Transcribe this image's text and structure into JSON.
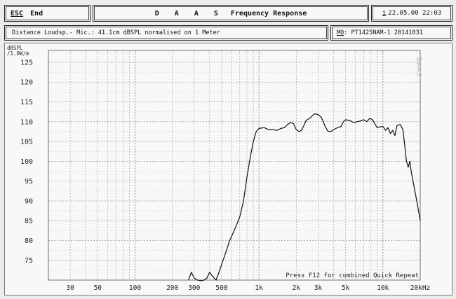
{
  "header": {
    "esc_key": "ESC",
    "esc_label": "End",
    "title_prefix": "D A A S",
    "title": "Frequency Response",
    "date_key": "i",
    "datetime": "22.05.00 22:03"
  },
  "info": {
    "text": "Distance Loudsp.- Mic.: 41.1cm dBSPL normalised on 1 Meter",
    "mo_key": "MO",
    "mo_value": ": PT1425NAM-1 20141031"
  },
  "chart_data": {
    "type": "line",
    "ylabel": "dBSPL\n/1.0W/m",
    "xlabel": "",
    "xunit": "Hz",
    "xscale": "log",
    "xlim": [
      20,
      20000
    ],
    "ylim": [
      70,
      128
    ],
    "y_ticks": [
      75,
      80,
      85,
      90,
      95,
      100,
      105,
      110,
      115,
      120,
      125
    ],
    "x_ticks": [
      {
        "v": 30,
        "label": "30"
      },
      {
        "v": 50,
        "label": "50"
      },
      {
        "v": 100,
        "label": "100"
      },
      {
        "v": 200,
        "label": "200"
      },
      {
        "v": 300,
        "label": "300"
      },
      {
        "v": 500,
        "label": "500"
      },
      {
        "v": 1000,
        "label": "1k"
      },
      {
        "v": 2000,
        "label": "2k"
      },
      {
        "v": 3000,
        "label": "3k"
      },
      {
        "v": 5000,
        "label": "5k"
      },
      {
        "v": 10000,
        "label": "10k"
      },
      {
        "v": 20000,
        "label": "20kHz"
      }
    ],
    "grid": true,
    "watermark": "DAAS",
    "footer_note": "Press F12 for combined Quick Repeat",
    "series": [
      {
        "color": "#111111",
        "points": [
          [
            270,
            70
          ],
          [
            285,
            72
          ],
          [
            300,
            70.5
          ],
          [
            320,
            70
          ],
          [
            340,
            69.8
          ],
          [
            360,
            70
          ],
          [
            380,
            70.5
          ],
          [
            400,
            72
          ],
          [
            420,
            71
          ],
          [
            450,
            70
          ],
          [
            470,
            71.5
          ],
          [
            500,
            74
          ],
          [
            540,
            77
          ],
          [
            580,
            80
          ],
          [
            620,
            82
          ],
          [
            660,
            84
          ],
          [
            700,
            86
          ],
          [
            750,
            90
          ],
          [
            800,
            96
          ],
          [
            850,
            101
          ],
          [
            900,
            105
          ],
          [
            950,
            107.5
          ],
          [
            1000,
            108.3
          ],
          [
            1100,
            108.5
          ],
          [
            1200,
            108
          ],
          [
            1300,
            108
          ],
          [
            1400,
            107.8
          ],
          [
            1500,
            108.3
          ],
          [
            1600,
            108.5
          ],
          [
            1700,
            109.3
          ],
          [
            1800,
            109.8
          ],
          [
            1900,
            109.5
          ],
          [
            2000,
            108
          ],
          [
            2100,
            107.5
          ],
          [
            2200,
            107.8
          ],
          [
            2300,
            109
          ],
          [
            2400,
            110.3
          ],
          [
            2600,
            111
          ],
          [
            2800,
            112
          ],
          [
            3000,
            111.8
          ],
          [
            3200,
            111
          ],
          [
            3400,
            109
          ],
          [
            3600,
            107.6
          ],
          [
            3800,
            107.5
          ],
          [
            4000,
            108
          ],
          [
            4300,
            108.5
          ],
          [
            4600,
            108.8
          ],
          [
            4800,
            110
          ],
          [
            5000,
            110.5
          ],
          [
            5400,
            110.3
          ],
          [
            5800,
            109.8
          ],
          [
            6200,
            110
          ],
          [
            6600,
            110.2
          ],
          [
            7000,
            110.5
          ],
          [
            7400,
            110
          ],
          [
            7800,
            110.8
          ],
          [
            8200,
            110.6
          ],
          [
            8600,
            109.5
          ],
          [
            9000,
            108.5
          ],
          [
            9500,
            108.7
          ],
          [
            10000,
            108.8
          ],
          [
            10500,
            107.8
          ],
          [
            11000,
            108.5
          ],
          [
            11500,
            107
          ],
          [
            12000,
            107.8
          ],
          [
            12500,
            106.5
          ],
          [
            13000,
            109
          ],
          [
            13800,
            109.3
          ],
          [
            14500,
            108
          ],
          [
            15000,
            104
          ],
          [
            15500,
            100
          ],
          [
            16000,
            98.5
          ],
          [
            16500,
            100
          ],
          [
            17000,
            97
          ],
          [
            18000,
            93
          ],
          [
            19000,
            89
          ],
          [
            20000,
            85
          ]
        ]
      }
    ]
  }
}
